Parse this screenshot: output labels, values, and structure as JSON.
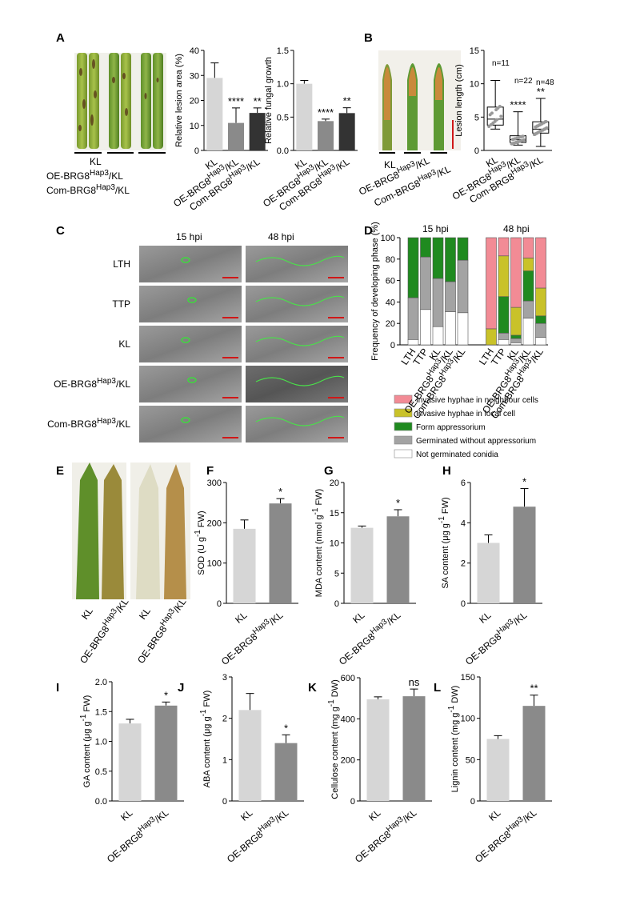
{
  "panels": {
    "A": "A",
    "B": "B",
    "C": "C",
    "D": "D",
    "E": "E",
    "F": "F",
    "G": "G",
    "H": "H",
    "I": "I",
    "J": "J",
    "K": "K",
    "L": "L"
  },
  "labels": {
    "KL": "KL",
    "OE": "OE-BRG8",
    "Com": "Com-BRG8",
    "sup": "Hap3",
    "suffix": "/KL",
    "LTH": "LTH",
    "TTP": "TTP"
  },
  "panelC": {
    "col_headers": [
      "15 hpi",
      "48 hpi"
    ],
    "rows": [
      "LTH",
      "TTP",
      "KL",
      "OE-BRG8",
      "Com-BRG8"
    ]
  },
  "panelD": {
    "col_headers": [
      "15 hpi",
      "48 hpi"
    ],
    "legend": [
      {
        "label": "Invasive hyphae in neighbour cells",
        "color": "#f28b95"
      },
      {
        "label": "Invasive hyphae in local cell",
        "color": "#c9c229"
      },
      {
        "label": "Form appressorium",
        "color": "#1f8a1f"
      },
      {
        "label": "Germinated without appressorium",
        "color": "#a3a3a3"
      },
      {
        "label": "Not germinated conidia",
        "color": "#ffffff"
      }
    ]
  },
  "panelB_n": [
    "n=11",
    "n=22",
    "n=48"
  ],
  "colors": {
    "light": "#d6d6d6",
    "mid": "#8a8a8a",
    "dark": "#333333"
  },
  "chart_data": [
    {
      "id": "A1",
      "type": "bar",
      "ylabel": "Relative lesion area (%)",
      "ylim": [
        0,
        40
      ],
      "yticks": [
        0,
        10,
        20,
        30,
        40
      ],
      "categories": [
        "KL",
        "OE-BRG8Hap3/KL",
        "Com-BRG8Hap3/KL"
      ],
      "values": [
        29,
        11,
        15
      ],
      "errors": [
        6,
        6,
        2
      ],
      "sig": [
        "",
        "****",
        "**"
      ]
    },
    {
      "id": "A2",
      "type": "bar",
      "ylabel": "Relative fungal growth",
      "ylim": [
        0,
        1.5
      ],
      "yticks": [
        0.0,
        0.5,
        1.0,
        1.5
      ],
      "categories": [
        "KL",
        "OE-BRG8Hap3/KL",
        "Com-BRG8Hap3/KL"
      ],
      "values": [
        1.0,
        0.44,
        0.56
      ],
      "errors": [
        0.05,
        0.03,
        0.08
      ],
      "sig": [
        "",
        "****",
        "**"
      ]
    },
    {
      "id": "B",
      "type": "box",
      "ylabel": "Lesion length (cm)",
      "ylim": [
        0,
        15
      ],
      "yticks": [
        0,
        5,
        10,
        15
      ],
      "categories": [
        "KL",
        "OE-BRG8Hap3/KL",
        "Com-BRG8Hap3/KL"
      ],
      "box": [
        {
          "min": 3.2,
          "q1": 3.8,
          "median": 4.7,
          "q3": 6.5,
          "max": 10.5
        },
        {
          "min": 0.8,
          "q1": 1.2,
          "median": 1.6,
          "q3": 2.2,
          "max": 5.8
        },
        {
          "min": 0.6,
          "q1": 2.6,
          "median": 3.2,
          "q3": 4.3,
          "max": 7.8
        }
      ],
      "sig": [
        "",
        "****",
        "**"
      ]
    },
    {
      "id": "D",
      "type": "stacked-bar",
      "ylabel": "Frequency of developing phase (%)",
      "ylim": [
        0,
        100
      ],
      "yticks": [
        0,
        20,
        40,
        60,
        80,
        100
      ],
      "categories": [
        "LTH",
        "TTP",
        "KL",
        "OE-BRG8Hap3/KL",
        "Com-BRG8Hap3/KL",
        "LTH",
        "TTP",
        "KL",
        "OE-BRG8Hap3/KL",
        "Com-BRG8Hap3/KL"
      ],
      "series": [
        {
          "name": "Not germinated conidia",
          "values": [
            5,
            33,
            17,
            31,
            30,
            0,
            5,
            2,
            25,
            7
          ]
        },
        {
          "name": "Germinated without appressorium",
          "values": [
            39,
            49,
            45,
            28,
            49,
            0,
            6,
            4,
            16,
            13
          ]
        },
        {
          "name": "Form appressorium",
          "values": [
            56,
            18,
            38,
            41,
            21,
            0,
            34,
            3,
            28,
            7
          ]
        },
        {
          "name": "Invasive hyphae in local cell",
          "values": [
            0,
            0,
            0,
            0,
            0,
            15,
            38,
            26,
            12,
            26
          ]
        },
        {
          "name": "Invasive hyphae in neighbour cells",
          "values": [
            0,
            0,
            0,
            0,
            0,
            85,
            17,
            65,
            19,
            47
          ]
        }
      ]
    },
    {
      "id": "F",
      "type": "bar",
      "ylabel": "SOD (U g-1 FW)",
      "ylim": [
        0,
        300
      ],
      "yticks": [
        0,
        100,
        200,
        300
      ],
      "categories": [
        "KL",
        "OE-BRG8Hap3/KL"
      ],
      "values": [
        185,
        248
      ],
      "errors": [
        22,
        12
      ],
      "sig": [
        "",
        "*"
      ]
    },
    {
      "id": "G",
      "type": "bar",
      "ylabel": "MDA content (nmol g-1 FW)",
      "ylim": [
        0,
        20
      ],
      "yticks": [
        0,
        5,
        10,
        15,
        20
      ],
      "categories": [
        "KL",
        "OE-BRG8Hap3/KL"
      ],
      "values": [
        12.5,
        14.4
      ],
      "errors": [
        0.3,
        1.1
      ],
      "sig": [
        "",
        "*"
      ]
    },
    {
      "id": "H",
      "type": "bar",
      "ylabel": "SA content (μg g-1 FW)",
      "ylim": [
        0,
        6
      ],
      "yticks": [
        0,
        2,
        4,
        6
      ],
      "categories": [
        "KL",
        "OE-BRG8Hap3/KL"
      ],
      "values": [
        3.0,
        4.8
      ],
      "errors": [
        0.4,
        0.9
      ],
      "sig": [
        "",
        "*"
      ]
    },
    {
      "id": "I",
      "type": "bar",
      "ylabel": "GA content (μg g-1 FW)",
      "ylim": [
        0,
        2.0
      ],
      "yticks": [
        0.0,
        0.5,
        1.0,
        1.5,
        2.0
      ],
      "categories": [
        "KL",
        "OE-BRG8Hap3/KL"
      ],
      "values": [
        1.3,
        1.6
      ],
      "errors": [
        0.07,
        0.06
      ],
      "sig": [
        "",
        "*"
      ]
    },
    {
      "id": "J",
      "type": "bar",
      "ylabel": "ABA content (μg g-1 FW)",
      "ylim": [
        0,
        3
      ],
      "yticks": [
        0,
        1,
        2,
        3
      ],
      "categories": [
        "KL",
        "OE-BRG8Hap3/KL"
      ],
      "values": [
        2.2,
        1.4
      ],
      "errors": [
        0.4,
        0.2
      ],
      "sig": [
        "",
        "*"
      ]
    },
    {
      "id": "K",
      "type": "bar",
      "ylabel": "Cellulose content (mg g-1 DW)",
      "ylim": [
        0,
        600
      ],
      "yticks": [
        0,
        200,
        400,
        600
      ],
      "categories": [
        "KL",
        "OE-BRG8Hap3/KL"
      ],
      "values": [
        495,
        510
      ],
      "errors": [
        12,
        35
      ],
      "sig": [
        "",
        "ns"
      ]
    },
    {
      "id": "L",
      "type": "bar",
      "ylabel": "Lignin content (mg g-1 DW)",
      "ylim": [
        0,
        150
      ],
      "yticks": [
        0,
        50,
        100,
        150
      ],
      "categories": [
        "KL",
        "OE-BRG8Hap3/KL"
      ],
      "values": [
        75,
        115
      ],
      "errors": [
        4,
        13
      ],
      "sig": [
        "",
        "**"
      ]
    }
  ]
}
